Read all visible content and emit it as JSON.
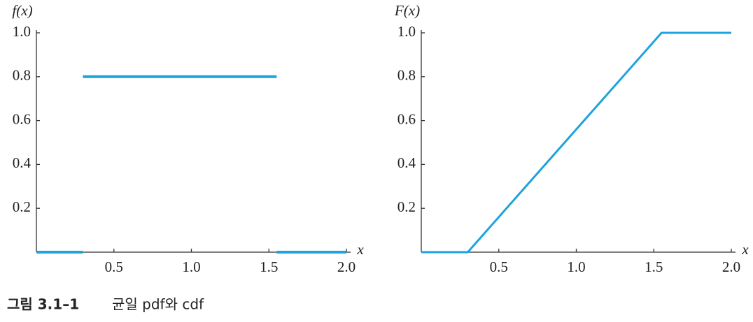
{
  "chart_data": [
    {
      "type": "line",
      "ylabel": "f(x)",
      "xlabel": "x",
      "series": [
        {
          "color": "#1fa3dc",
          "x": [
            0,
            0.3,
            null,
            0.3,
            1.55,
            null,
            1.55,
            2.0
          ],
          "values": [
            0,
            0,
            null,
            0.8,
            0.8,
            null,
            0,
            0
          ]
        }
      ],
      "xlim": [
        0,
        2
      ],
      "ylim": [
        0,
        1
      ],
      "xticks": [
        0.5,
        {
          "value": 1,
          "label": "1.0"
        },
        1.5,
        {
          "value": 2,
          "label": "2.0"
        }
      ],
      "yticks": [
        0.2,
        0.4,
        0.6,
        0.8,
        {
          "value": 1,
          "label": "1.0"
        }
      ]
    },
    {
      "type": "line",
      "ylabel": "F(x)",
      "xlabel": "x",
      "series": [
        {
          "color": "#1fa3dc",
          "x": [
            0,
            0.3,
            1.55,
            2.0
          ],
          "values": [
            0,
            0,
            1,
            1
          ]
        }
      ],
      "xlim": [
        0,
        2
      ],
      "ylim": [
        0,
        1
      ],
      "xticks": [
        0.5,
        {
          "value": 1,
          "label": "1.0"
        },
        1.5,
        {
          "value": 2,
          "label": "2.0"
        }
      ],
      "yticks": [
        0.2,
        0.4,
        0.6,
        0.8,
        {
          "value": 1,
          "label": "1.0"
        }
      ]
    }
  ],
  "caption": {
    "label": "그림 3.1–1",
    "text": "균일 pdf와 cdf"
  }
}
